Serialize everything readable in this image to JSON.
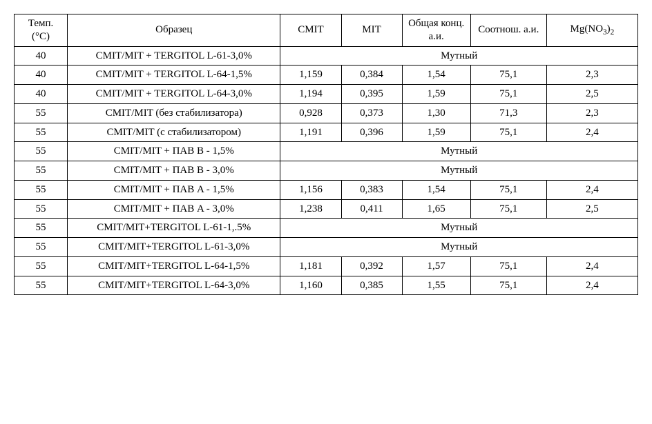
{
  "table": {
    "headers": {
      "temp": "Темп. (°C)",
      "sample": "Образец",
      "cmit": "CMIT",
      "mit": "MIT",
      "conc": "Общая конц. а.и.",
      "ratio": "Соотнош. а.и.",
      "mg_prefix": "Mg(NO",
      "mg_sub1": "3",
      "mg_mid": ")",
      "mg_sub2": "2"
    },
    "merged_label": "Мутный",
    "rows": [
      {
        "temp": "40",
        "sample": "CMIT/MIT + TERGITOL L-61-3,0%",
        "merged": true
      },
      {
        "temp": "40",
        "sample": "CMIT/MIT + TERGITOL L-64-1,5%",
        "cmit": "1,159",
        "mit": "0,384",
        "conc": "1,54",
        "ratio": "75,1",
        "mg": "2,3"
      },
      {
        "temp": "40",
        "sample": "CMIT/MIT + TERGITOL L-64-3,0%",
        "cmit": "1,194",
        "mit": "0,395",
        "conc": "1,59",
        "ratio": "75,1",
        "mg": "2,5"
      },
      {
        "temp": "55",
        "sample": "CMIT/MIT (без стабилизатора)",
        "cmit": "0,928",
        "mit": "0,373",
        "conc": "1,30",
        "ratio": "71,3",
        "mg": "2,3"
      },
      {
        "temp": "55",
        "sample": "CMIT/MIT (с стабилизатором)",
        "cmit": "1,191",
        "mit": "0,396",
        "conc": "1,59",
        "ratio": "75,1",
        "mg": "2,4"
      },
      {
        "temp": "55",
        "sample": "CMIT/MIT + ПАВ B - 1,5%",
        "merged": true
      },
      {
        "temp": "55",
        "sample": "CMIT/MIT + ПАВ B - 3,0%",
        "merged": true
      },
      {
        "temp": "55",
        "sample": "CMIT/MIT + ПАВ A - 1,5%",
        "cmit": "1,156",
        "mit": "0,383",
        "conc": "1,54",
        "ratio": "75,1",
        "mg": "2,4"
      },
      {
        "temp": "55",
        "sample": "CMIT/MIT + ПАВ A - 3,0%",
        "cmit": "1,238",
        "mit": "0,411",
        "conc": "1,65",
        "ratio": "75,1",
        "mg": "2,5"
      },
      {
        "temp": "55",
        "sample": "CMIT/MIT+TERGITOL L-61-1,.5%",
        "merged": true
      },
      {
        "temp": "55",
        "sample": "CMIT/MIT+TERGITOL L-61-3,0%",
        "merged": true
      },
      {
        "temp": "55",
        "sample": "CMIT/MIT+TERGITOL L-64-1,5%",
        "cmit": "1,181",
        "mit": "0,392",
        "conc": "1,57",
        "ratio": "75,1",
        "mg": "2,4"
      },
      {
        "temp": "55",
        "sample": "CMIT/MIT+TERGITOL L-64-3,0%",
        "cmit": "1,160",
        "mit": "0,385",
        "conc": "1,55",
        "ratio": "75,1",
        "mg": "2,4"
      }
    ],
    "colors": {
      "border": "#000000",
      "background": "#ffffff",
      "text": "#000000"
    },
    "font_family": "Times New Roman",
    "font_size_pt": 11
  }
}
